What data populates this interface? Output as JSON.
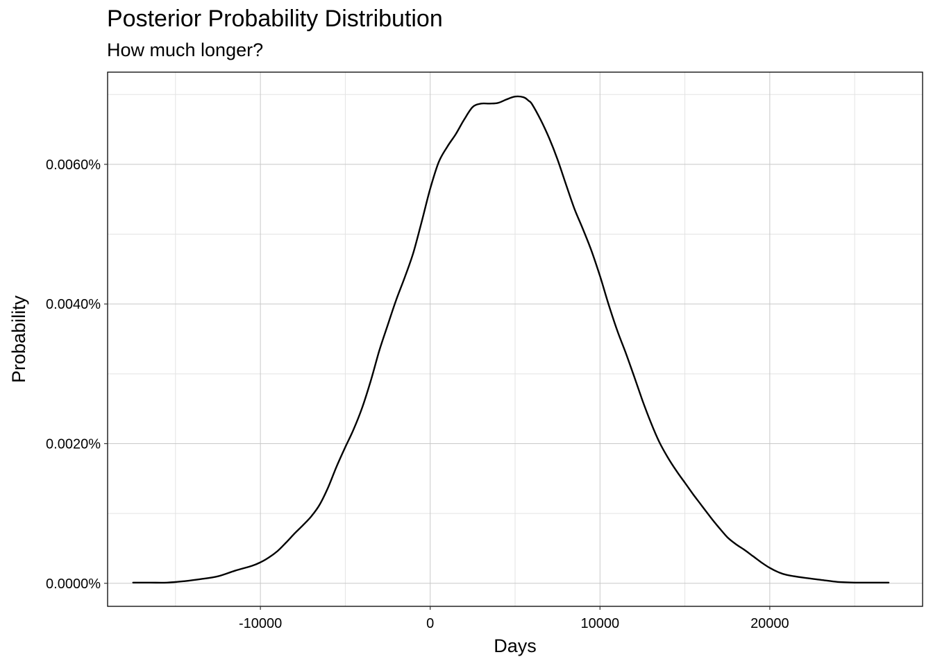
{
  "chart_data": {
    "type": "line",
    "title": "Posterior Probability Distribution",
    "subtitle": "How much longer?",
    "xlabel": "Days",
    "ylabel": "Probability",
    "xlim": [
      -19000,
      29000
    ],
    "ylim": [
      -3.3e-06,
      7.32e-05
    ],
    "x_ticks": [
      -10000,
      0,
      10000,
      20000
    ],
    "x_tick_labels": [
      "-10000",
      "0",
      "10000",
      "20000"
    ],
    "y_ticks": [
      0,
      2e-05,
      4e-05,
      6e-05
    ],
    "y_tick_labels": [
      "0.0000%",
      "0.0020%",
      "0.0040%",
      "0.0060%"
    ],
    "grid": true,
    "legend": "none",
    "line_color": "#000000",
    "series": [
      {
        "x": [
          -17500,
          -16500,
          -15500,
          -14500,
          -13500,
          -12500,
          -11500,
          -10500,
          -10000,
          -9500,
          -9000,
          -8500,
          -8000,
          -7500,
          -7000,
          -6500,
          -6000,
          -5500,
          -5000,
          -4500,
          -4000,
          -3500,
          -3000,
          -2500,
          -2000,
          -1500,
          -1000,
          -500,
          0,
          500,
          1000,
          1500,
          2000,
          2500,
          3000,
          3500,
          4000,
          4500,
          5000,
          5500,
          5800,
          6000,
          6500,
          7000,
          7500,
          8000,
          8500,
          9000,
          9500,
          10000,
          10500,
          11000,
          11500,
          12000,
          12500,
          13000,
          13500,
          14000,
          14500,
          15000,
          15500,
          16000,
          16500,
          17000,
          17500,
          18000,
          18500,
          19000,
          19500,
          20000,
          20500,
          21000,
          22000,
          23000,
          24000,
          25000,
          26000,
          27000
        ],
        "y": [
          1e-07,
          1e-07,
          1e-07,
          3e-07,
          6e-07,
          1e-06,
          1.8e-06,
          2.5e-06,
          3e-06,
          3.7e-06,
          4.6e-06,
          5.8e-06,
          7.1e-06,
          8.3e-06,
          9.6e-06,
          1.13e-05,
          1.38e-05,
          1.68e-05,
          1.95e-05,
          2.21e-05,
          2.52e-05,
          2.9e-05,
          3.33e-05,
          3.7e-05,
          4.06e-05,
          4.38e-05,
          4.73e-05,
          5.18e-05,
          5.65e-05,
          6.03e-05,
          6.25e-05,
          6.43e-05,
          6.64e-05,
          6.82e-05,
          6.87e-05,
          6.87e-05,
          6.88e-05,
          6.93e-05,
          6.97e-05,
          6.96e-05,
          6.91e-05,
          6.86e-05,
          6.64e-05,
          6.38e-05,
          6.07e-05,
          5.71e-05,
          5.36e-05,
          5.07e-05,
          4.76e-05,
          4.4e-05,
          4e-05,
          3.63e-05,
          3.31e-05,
          2.97e-05,
          2.62e-05,
          2.3e-05,
          2.02e-05,
          1.8e-05,
          1.61e-05,
          1.44e-05,
          1.27e-05,
          1.11e-05,
          9.5e-06,
          8e-06,
          6.6e-06,
          5.6e-06,
          4.8e-06,
          3.9e-06,
          3e-06,
          2.2e-06,
          1.6e-06,
          1.2e-06,
          8e-07,
          5e-07,
          2e-07,
          1e-07,
          1e-07,
          1e-07
        ]
      }
    ]
  }
}
